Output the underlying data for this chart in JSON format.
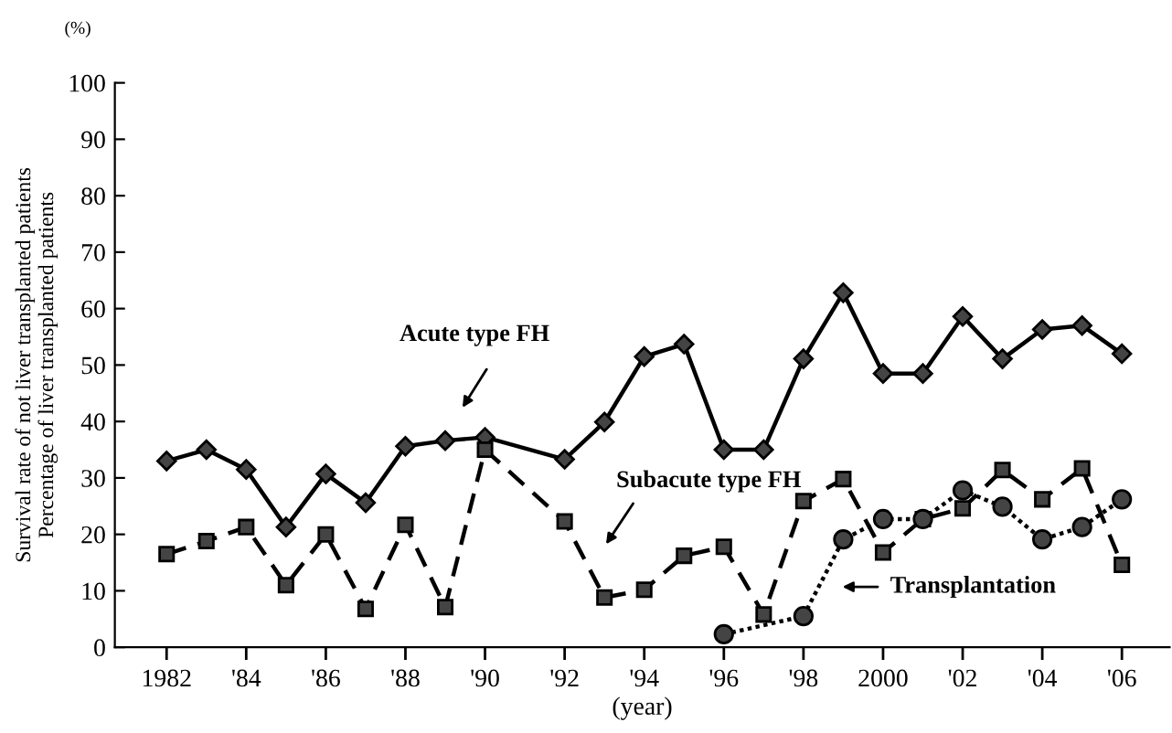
{
  "chart_data": {
    "type": "line",
    "ylabel": "Survival rate of not liver transplanted patients\nPercentage of liver transplanted patients",
    "xlabel": "(year)",
    "annotations": [
      "(%)",
      "Acute type FH",
      "Subacute type FH",
      "Transplantation"
    ],
    "xlim": [
      1980.7,
      2007.2
    ],
    "ylim": [
      0,
      100
    ],
    "xticks": [
      {
        "value": 1982,
        "label": "1982"
      },
      {
        "value": 1984,
        "label": "'84"
      },
      {
        "value": 1986,
        "label": "'86"
      },
      {
        "value": 1988,
        "label": "'88"
      },
      {
        "value": 1990,
        "label": "'90"
      },
      {
        "value": 1992,
        "label": "'92"
      },
      {
        "value": 1994,
        "label": "'94"
      },
      {
        "value": 1996,
        "label": "'96"
      },
      {
        "value": 1998,
        "label": "'98"
      },
      {
        "value": 2000,
        "label": "2000"
      },
      {
        "value": 2002,
        "label": "'02"
      },
      {
        "value": 2004,
        "label": "'04"
      },
      {
        "value": 2006,
        "label": "'06"
      }
    ],
    "yticks": [
      0,
      10,
      20,
      30,
      40,
      50,
      60,
      70,
      80,
      90,
      100
    ],
    "grid": false,
    "legend": false,
    "series": [
      {
        "color": "#000000",
        "marker": "diamond",
        "line_style": "solid",
        "x": [
          1982,
          1983,
          1984,
          1985,
          1986,
          1987,
          1988,
          1989,
          1990,
          1992,
          1993,
          1994,
          1995,
          1996,
          1997,
          1998,
          1999,
          2000,
          2001,
          2002,
          2003,
          2004,
          2005,
          2006
        ],
        "values": [
          33,
          35,
          31.5,
          21.3,
          30.7,
          25.6,
          35.6,
          36.6,
          37.2,
          33.3,
          39.9,
          51.5,
          53.7,
          35,
          35,
          51.1,
          62.8,
          48.5,
          48.5,
          58.6,
          51.1,
          56.3,
          57,
          52
        ]
      },
      {
        "color": "#000000",
        "marker": "square",
        "line_style": "dashed",
        "x": [
          1982,
          1983,
          1984,
          1985,
          1986,
          1987,
          1988,
          1989,
          1990,
          1992,
          1993,
          1994,
          1995,
          1996,
          1997,
          1998,
          1999,
          2000,
          2001,
          2002,
          2003,
          2004,
          2005,
          2006
        ],
        "values": [
          16.5,
          18.8,
          21.3,
          11,
          20,
          6.8,
          21.7,
          7.1,
          35,
          22.3,
          8.8,
          10.2,
          16.2,
          17.8,
          5.8,
          25.9,
          29.8,
          16.8,
          22.7,
          24.6,
          31.4,
          26.2,
          31.7,
          14.6
        ]
      },
      {
        "color": "#000000",
        "marker": "circle",
        "line_style": "dotted",
        "x": [
          1996,
          1998,
          1999,
          2000,
          2001,
          2002,
          2003,
          2004,
          2005,
          2006
        ],
        "values": [
          2.3,
          5.5,
          19.1,
          22.7,
          22.7,
          27.8,
          24.9,
          19.1,
          21.3,
          26.2
        ]
      }
    ]
  }
}
